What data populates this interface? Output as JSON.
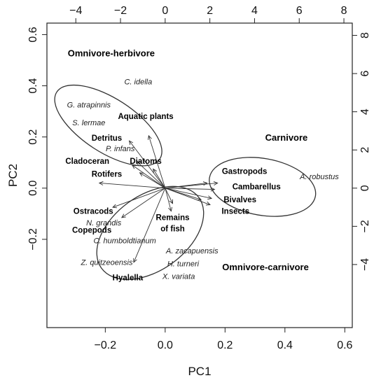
{
  "chart_data": {
    "type": "scatter",
    "title": "",
    "xlabel": "PC1",
    "ylabel": "PC2",
    "xlim": [
      -0.395,
      0.625
    ],
    "ylim": [
      -0.545,
      0.645
    ],
    "x_ticks": [
      -0.2,
      0.0,
      0.2,
      0.4,
      0.6
    ],
    "y_ticks": [
      -0.2,
      0.0,
      0.2,
      0.4,
      0.6
    ],
    "x_tick_labels": [
      "−0.2",
      "0.0",
      "0.2",
      "0.4",
      "0.6"
    ],
    "y_tick_labels": [
      "−0.2",
      "0.0",
      "0.2",
      "0.4",
      "0.6"
    ],
    "top_axis_ticks": [
      -4,
      -2,
      0,
      2,
      4,
      6,
      8
    ],
    "top_axis_labels": [
      "−4",
      "−2",
      "0",
      "2",
      "4",
      "6",
      "8"
    ],
    "right_axis_ticks": [
      -4,
      -2,
      0,
      2,
      4,
      6,
      8
    ],
    "right_axis_labels": [
      "−4",
      "−2",
      "0",
      "2",
      "4",
      "6",
      "8"
    ],
    "secondary_scale": 13.4,
    "grid": false,
    "groups": [
      {
        "name": "Omnivore-herbivore",
        "label_at": [
          -0.18,
          0.515
        ],
        "center": [
          -0.19,
          0.245
        ],
        "rx": 0.09,
        "ry": 0.24,
        "angle": -57
      },
      {
        "name": "Carnivore",
        "label_at": [
          0.405,
          0.185
        ],
        "center": [
          0.325,
          0.005
        ],
        "rx": 0.095,
        "ry": 0.21,
        "angle": -80
      },
      {
        "name": "Omnivore-carnivore",
        "label_at": [
          0.335,
          -0.32
        ],
        "center": [
          -0.05,
          -0.175
        ],
        "rx": 0.125,
        "ry": 0.235,
        "angle": 54
      }
    ],
    "food_vectors": [
      {
        "label": "Aquatic plants",
        "x": -0.055,
        "y": 0.205,
        "label_at": [
          -0.065,
          0.27
        ]
      },
      {
        "label": "Detritus",
        "x": -0.12,
        "y": 0.185,
        "label_at": [
          -0.195,
          0.185
        ]
      },
      {
        "label": "Diatoms",
        "x": -0.095,
        "y": 0.105,
        "label_at": [
          -0.065,
          0.095
        ]
      },
      {
        "label": "Cladoceran",
        "x": -0.11,
        "y": 0.09,
        "label_at": [
          -0.26,
          0.095
        ]
      },
      {
        "label": "Rotifers",
        "x": -0.085,
        "y": 0.06,
        "label_at": [
          -0.195,
          0.045
        ]
      },
      {
        "label": "Ostracods",
        "x": -0.175,
        "y": -0.075,
        "label_at": [
          -0.24,
          -0.1
        ]
      },
      {
        "label": "Copepods",
        "x": -0.145,
        "y": -0.115,
        "label_at": [
          -0.245,
          -0.175
        ]
      },
      {
        "label": "Hyalella",
        "x": -0.105,
        "y": -0.29,
        "label_at": [
          -0.125,
          -0.36
        ]
      },
      {
        "label": "Remains of fish",
        "x": 0.02,
        "y": -0.09,
        "label_at": [
          0.025,
          -0.125
        ]
      },
      {
        "label": "Gastropods",
        "x": 0.175,
        "y": 0.02,
        "label_at": [
          0.265,
          0.055
        ]
      },
      {
        "label": "Cambarellus",
        "x": 0.165,
        "y": -0.005,
        "label_at": [
          0.305,
          -0.005
        ]
      },
      {
        "label": "Bivalves",
        "x": 0.155,
        "y": -0.04,
        "label_at": [
          0.25,
          -0.055
        ]
      },
      {
        "label": "Insects",
        "x": 0.12,
        "y": -0.045,
        "label_at": [
          0.235,
          -0.1
        ]
      }
    ],
    "extra_arrows": [
      {
        "x": -0.22,
        "y": 0.02
      },
      {
        "x": -0.04,
        "y": 0.075
      },
      {
        "x": 0.025,
        "y": -0.06
      },
      {
        "x": 0.15,
        "y": -0.065
      },
      {
        "x": 0.14,
        "y": 0.02
      }
    ],
    "species": [
      {
        "label": "C. idella",
        "label_at": [
          -0.09,
          0.405
        ]
      },
      {
        "label": "G. atrapinnis",
        "label_at": [
          -0.255,
          0.315
        ]
      },
      {
        "label": "S. lermae",
        "label_at": [
          -0.255,
          0.245
        ]
      },
      {
        "label": "P. infans",
        "label_at": [
          -0.15,
          0.145
        ]
      },
      {
        "label": "A. robustus",
        "label_at": [
          0.515,
          0.035
        ]
      },
      {
        "label": "N. grandis",
        "label_at": [
          -0.205,
          -0.145
        ]
      },
      {
        "label": "C. humboldtianum",
        "label_at": [
          -0.135,
          -0.215
        ]
      },
      {
        "label": "A. zacapuensis",
        "label_at": [
          0.09,
          -0.255
        ]
      },
      {
        "label": "Z. quitzeoensis",
        "label_at": [
          -0.195,
          -0.3
        ]
      },
      {
        "label": "H. turneri",
        "label_at": [
          0.06,
          -0.305
        ]
      },
      {
        "label": "X. variata",
        "label_at": [
          0.045,
          -0.355
        ]
      }
    ]
  }
}
